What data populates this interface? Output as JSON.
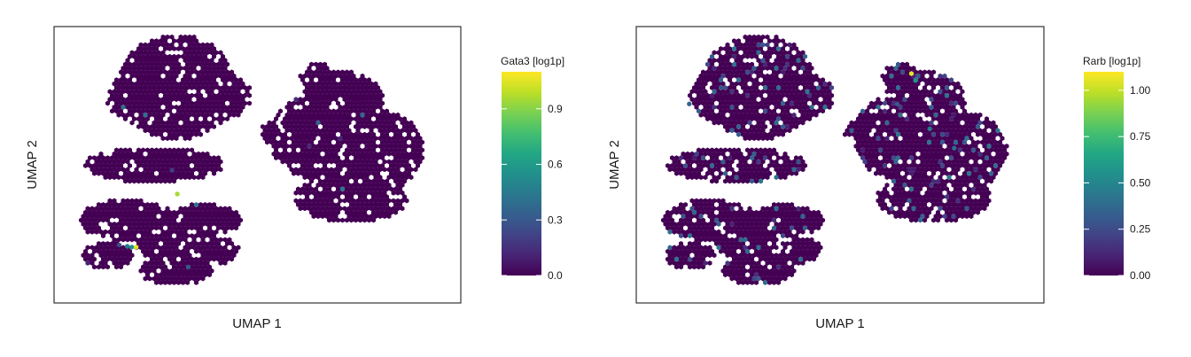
{
  "chart_data": [
    {
      "type": "heatmap",
      "subtype": "umap-hexbin",
      "xlabel": "UMAP 1",
      "ylabel": "UMAP 2",
      "colorbar": {
        "title": "Gata3 [log1p]",
        "colormap": "viridis",
        "range": [
          0,
          1.1
        ],
        "ticks": [
          0.0,
          0.3,
          0.6,
          0.9
        ],
        "tick_labels": [
          "0.0",
          "0.3",
          "0.6",
          "0.9"
        ]
      },
      "highlights": [
        {
          "x": 0.303,
          "y": 0.394,
          "value": 0.95
        },
        {
          "x": 0.191,
          "y": 0.202,
          "value": 0.55
        },
        {
          "x": 0.202,
          "y": 0.202,
          "value": 1.05
        },
        {
          "x": 0.18,
          "y": 0.205,
          "value": 0.45
        },
        {
          "x": 0.33,
          "y": 0.13,
          "value": 0.3
        },
        {
          "x": 0.16,
          "y": 0.21,
          "value": 0.25
        },
        {
          "x": 0.29,
          "y": 0.48,
          "value": 0.2
        }
      ],
      "speckle_rate": 0.006,
      "seed": 11
    },
    {
      "type": "heatmap",
      "subtype": "umap-hexbin",
      "xlabel": "UMAP 1",
      "ylabel": "UMAP 2",
      "colorbar": {
        "title": "Rarb [log1p]",
        "colormap": "viridis",
        "range": [
          0,
          1.1
        ],
        "ticks": [
          0.0,
          0.25,
          0.5,
          0.75,
          1.0
        ],
        "tick_labels": [
          "0.00",
          "0.25",
          "0.50",
          "0.75",
          "1.00"
        ]
      },
      "highlights": [
        {
          "x": 0.675,
          "y": 0.83,
          "value": 1.05
        },
        {
          "x": 0.685,
          "y": 0.805,
          "value": 0.55
        },
        {
          "x": 0.72,
          "y": 0.63,
          "value": 0.45
        },
        {
          "x": 0.78,
          "y": 0.56,
          "value": 0.4
        },
        {
          "x": 0.13,
          "y": 0.72,
          "value": 0.35
        },
        {
          "x": 0.64,
          "y": 0.72,
          "value": 0.3
        }
      ],
      "speckle_rate": 0.09,
      "seed": 23
    }
  ],
  "panels": [
    {
      "xlabel": "UMAP 1",
      "ylabel": "UMAP 2",
      "cb_title": "Gata3 [log1p]",
      "cb_labels": [
        "0.0",
        "0.3",
        "0.6",
        "0.9"
      ]
    },
    {
      "xlabel": "UMAP 1",
      "ylabel": "UMAP 2",
      "cb_title": "Rarb [log1p]",
      "cb_labels": [
        "0.00",
        "0.25",
        "0.50",
        "0.75",
        "1.00"
      ]
    }
  ]
}
